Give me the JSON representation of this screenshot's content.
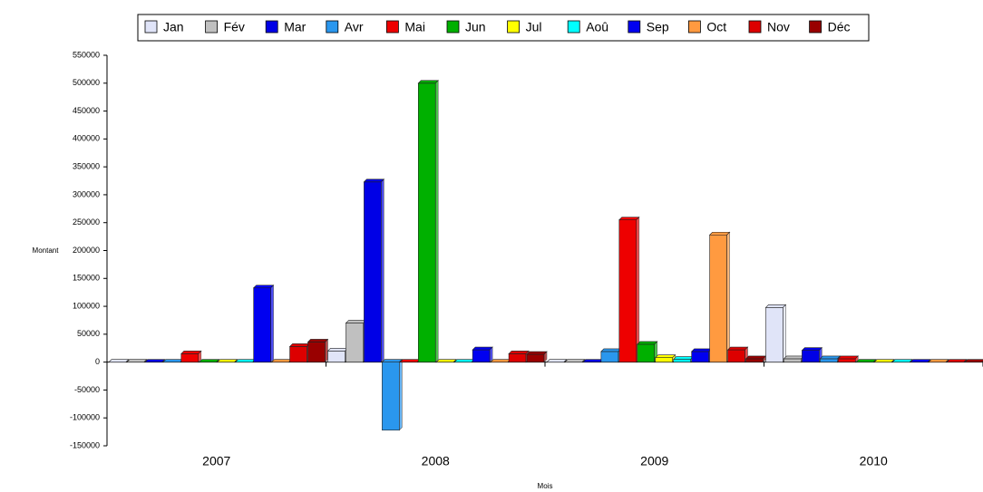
{
  "chart_data": {
    "type": "bar",
    "x_label": "Mois",
    "y_label": "Montant",
    "categories": [
      "2007",
      "2008",
      "2009",
      "2010"
    ],
    "series": [
      {
        "name": "Jan",
        "color": "#e0e4f8",
        "values": [
          0,
          20000,
          0,
          98000
        ]
      },
      {
        "name": "Fév",
        "color": "#c0c0c0",
        "values": [
          0,
          70000,
          0,
          6000
        ]
      },
      {
        "name": "Mar",
        "color": "#0000e6",
        "values": [
          0,
          323000,
          0,
          21000
        ]
      },
      {
        "name": "Avr",
        "color": "#2a97ee",
        "values": [
          0,
          -122000,
          19000,
          6000
        ]
      },
      {
        "name": "Mai",
        "color": "#ee0000",
        "values": [
          15000,
          0,
          255000,
          6000
        ]
      },
      {
        "name": "Jun",
        "color": "#00b000",
        "values": [
          0,
          500000,
          32000,
          0
        ]
      },
      {
        "name": "Jul",
        "color": "#ffff00",
        "values": [
          0,
          0,
          8000,
          0
        ]
      },
      {
        "name": "Aoû",
        "color": "#00ffff",
        "values": [
          0,
          0,
          5000,
          0
        ]
      },
      {
        "name": "Sep",
        "color": "#0000f0",
        "values": [
          133000,
          22000,
          19000,
          0
        ]
      },
      {
        "name": "Oct",
        "color": "#ff9a40",
        "values": [
          0,
          0,
          228000,
          0
        ]
      },
      {
        "name": "Nov",
        "color": "#dd0000",
        "values": [
          28000,
          15000,
          22000,
          0
        ]
      },
      {
        "name": "Déc",
        "color": "#990000",
        "values": [
          36000,
          14000,
          6000,
          0
        ]
      }
    ],
    "ylim": [
      -150000,
      550000
    ],
    "yticks": [
      -150000,
      -100000,
      -50000,
      0,
      50000,
      100000,
      150000,
      200000,
      250000,
      300000,
      350000,
      400000,
      450000,
      500000,
      550000
    ],
    "grid": false
  }
}
